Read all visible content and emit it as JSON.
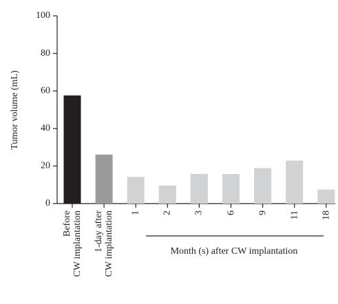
{
  "chart_data": {
    "type": "bar",
    "y_label": "Tumor volume (mL)",
    "categories": [
      "Before\nCW implantation",
      "1-day after\nCW implantation",
      "1",
      "2",
      "3",
      "6",
      "9",
      "11",
      "18"
    ],
    "values": [
      57.6,
      26.1,
      14.2,
      9.6,
      15.8,
      15.7,
      18.9,
      22.9,
      7.5
    ],
    "colors": [
      "#231f20",
      "#999a9c",
      "#d1d2d4",
      "#d1d2d4",
      "#d1d2d4",
      "#d1d2d4",
      "#d1d2d4",
      "#d1d2d4",
      "#d1d2d4"
    ],
    "annotation": "Month (s) after CW implantation",
    "ylim": [
      0,
      100
    ],
    "yticks": [
      0,
      20,
      40,
      60,
      80,
      100
    ],
    "grid": false
  }
}
